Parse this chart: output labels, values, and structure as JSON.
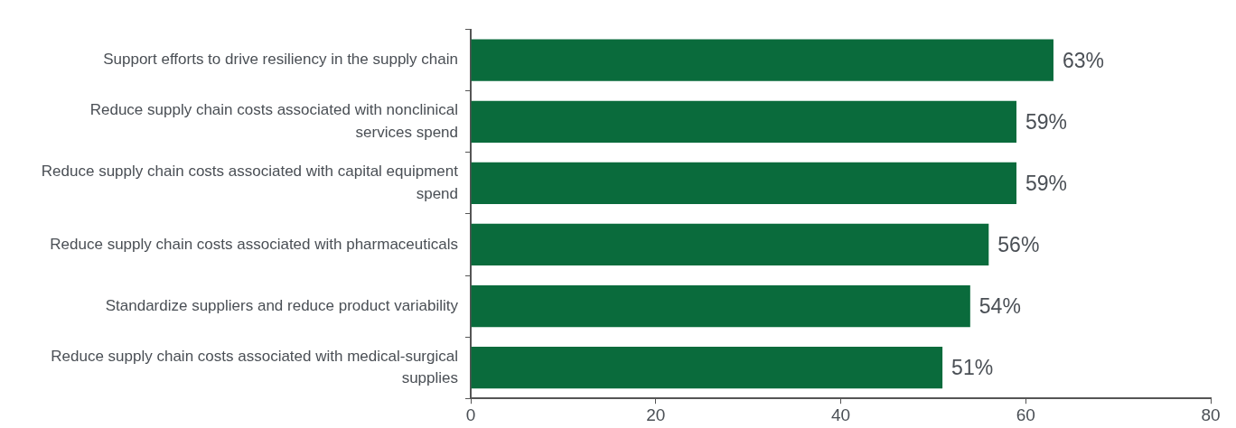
{
  "chart_data": {
    "type": "bar",
    "orientation": "horizontal",
    "categories": [
      "Support efforts to drive resiliency in the supply chain",
      "Reduce supply chain costs associated with nonclinical services spend",
      "Reduce supply chain costs associated with capital equipment spend",
      "Reduce supply chain costs associated with pharmaceuticals",
      "Standardize suppliers and reduce product variability",
      "Reduce supply chain costs associated with medical-surgical supplies"
    ],
    "values": [
      63,
      59,
      59,
      56,
      54,
      51
    ],
    "value_labels": [
      "63%",
      "59%",
      "59%",
      "56%",
      "54%",
      "51%"
    ],
    "color": "#0a6b3c",
    "xlim": [
      0,
      80
    ],
    "xticks": [
      0,
      20,
      40,
      60,
      80
    ],
    "grid": false,
    "legend": false
  }
}
